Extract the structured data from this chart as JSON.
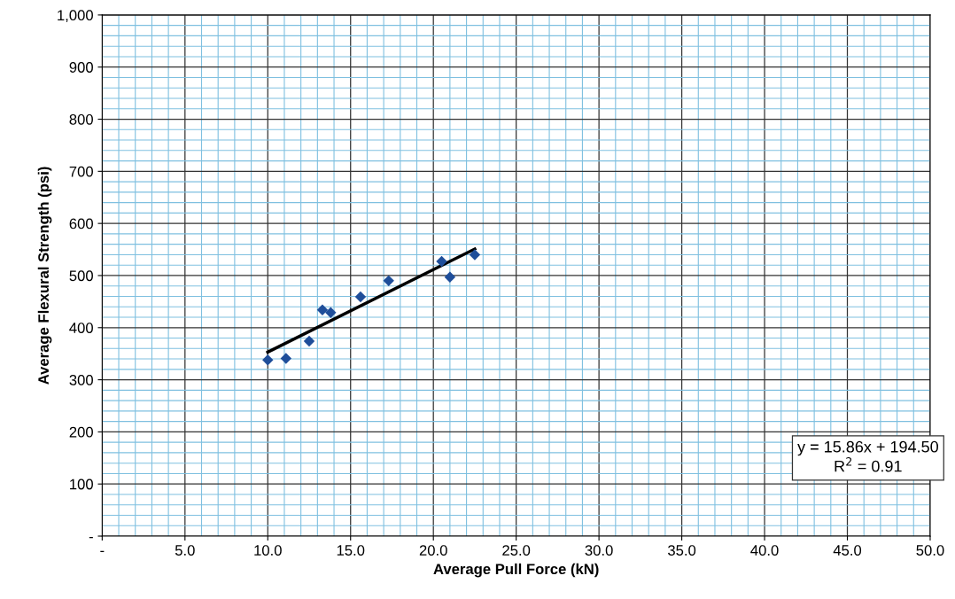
{
  "chart_data": {
    "type": "scatter",
    "xlabel": "Average Pull Force (kN)",
    "ylabel": "Average Flexural Strength (psi)",
    "xlim": [
      0,
      50
    ],
    "ylim": [
      0,
      1000
    ],
    "xticks": [
      {
        "value": 0,
        "label": "-"
      },
      {
        "value": 1,
        "label": null
      },
      {
        "value": 2,
        "label": null
      },
      {
        "value": 3,
        "label": null
      },
      {
        "value": 4,
        "label": null
      },
      {
        "value": 5,
        "label": "5.0"
      },
      {
        "value": 6,
        "label": null
      },
      {
        "value": 7,
        "label": null
      },
      {
        "value": 8,
        "label": null
      },
      {
        "value": 9,
        "label": null
      },
      {
        "value": 10,
        "label": "10.0"
      },
      {
        "value": 11,
        "label": null
      },
      {
        "value": 12,
        "label": null
      },
      {
        "value": 13,
        "label": null
      },
      {
        "value": 14,
        "label": null
      },
      {
        "value": 15,
        "label": "15.0"
      },
      {
        "value": 16,
        "label": null
      },
      {
        "value": 17,
        "label": null
      },
      {
        "value": 18,
        "label": null
      },
      {
        "value": 19,
        "label": null
      },
      {
        "value": 20,
        "label": "20.0"
      },
      {
        "value": 21,
        "label": null
      },
      {
        "value": 22,
        "label": null
      },
      {
        "value": 23,
        "label": null
      },
      {
        "value": 24,
        "label": null
      },
      {
        "value": 25,
        "label": "25.0"
      },
      {
        "value": 26,
        "label": null
      },
      {
        "value": 27,
        "label": null
      },
      {
        "value": 28,
        "label": null
      },
      {
        "value": 29,
        "label": null
      },
      {
        "value": 30,
        "label": "30.0"
      },
      {
        "value": 31,
        "label": null
      },
      {
        "value": 32,
        "label": null
      },
      {
        "value": 33,
        "label": null
      },
      {
        "value": 34,
        "label": null
      },
      {
        "value": 35,
        "label": "35.0"
      },
      {
        "value": 36,
        "label": null
      },
      {
        "value": 37,
        "label": null
      },
      {
        "value": 38,
        "label": null
      },
      {
        "value": 39,
        "label": null
      },
      {
        "value": 40,
        "label": "40.0"
      },
      {
        "value": 41,
        "label": null
      },
      {
        "value": 42,
        "label": null
      },
      {
        "value": 43,
        "label": null
      },
      {
        "value": 44,
        "label": null
      },
      {
        "value": 45,
        "label": "45.0"
      },
      {
        "value": 46,
        "label": null
      },
      {
        "value": 47,
        "label": null
      },
      {
        "value": 48,
        "label": null
      },
      {
        "value": 49,
        "label": null
      },
      {
        "value": 50,
        "label": "50.0"
      }
    ],
    "yticks": [
      {
        "value": 0,
        "label": "-"
      },
      {
        "value": 20,
        "label": null
      },
      {
        "value": 40,
        "label": null
      },
      {
        "value": 60,
        "label": null
      },
      {
        "value": 80,
        "label": null
      },
      100,
      {
        "value": 120,
        "label": null
      },
      {
        "value": 140,
        "label": null
      },
      {
        "value": 160,
        "label": null
      },
      {
        "value": 180,
        "label": null
      },
      200,
      {
        "value": 220,
        "label": null
      },
      {
        "value": 240,
        "label": null
      },
      {
        "value": 260,
        "label": null
      },
      {
        "value": 280,
        "label": null
      },
      300,
      {
        "value": 320,
        "label": null
      },
      {
        "value": 340,
        "label": null
      },
      {
        "value": 360,
        "label": null
      },
      {
        "value": 380,
        "label": null
      },
      400,
      {
        "value": 420,
        "label": null
      },
      {
        "value": 440,
        "label": null
      },
      {
        "value": 460,
        "label": null
      },
      {
        "value": 480,
        "label": null
      },
      500,
      {
        "value": 520,
        "label": null
      },
      {
        "value": 540,
        "label": null
      },
      {
        "value": 560,
        "label": null
      },
      {
        "value": 580,
        "label": null
      },
      600,
      {
        "value": 620,
        "label": null
      },
      {
        "value": 640,
        "label": null
      },
      {
        "value": 660,
        "label": null
      },
      {
        "value": 680,
        "label": null
      },
      700,
      {
        "value": 720,
        "label": null
      },
      {
        "value": 740,
        "label": null
      },
      {
        "value": 760,
        "label": null
      },
      {
        "value": 780,
        "label": null
      },
      800,
      {
        "value": 820,
        "label": null
      },
      {
        "value": 840,
        "label": null
      },
      {
        "value": 860,
        "label": null
      },
      {
        "value": 880,
        "label": null
      },
      900,
      {
        "value": 920,
        "label": null
      },
      {
        "value": 940,
        "label": null
      },
      {
        "value": 960,
        "label": null
      },
      {
        "value": 980,
        "label": null
      },
      {
        "value": 1000,
        "label": "1,000"
      }
    ],
    "grid": true,
    "marker": "diamond",
    "series": [
      {
        "color": "#1f4e9a",
        "x": [
          10.0,
          11.1,
          12.5,
          13.3,
          13.8,
          15.6,
          17.3,
          20.5,
          21.0,
          22.5
        ],
        "values": [
          338,
          341,
          374,
          434,
          429,
          459,
          490,
          527,
          497,
          540
        ]
      },
      {
        "type": "line",
        "color": "#000000",
        "marker": "none",
        "x": [
          10.0,
          22.5
        ],
        "values": [
          353,
          551
        ]
      }
    ],
    "annotations": [
      "y = 15.86x + 194.50",
      "R$^{2}$ = 0.91"
    ]
  }
}
